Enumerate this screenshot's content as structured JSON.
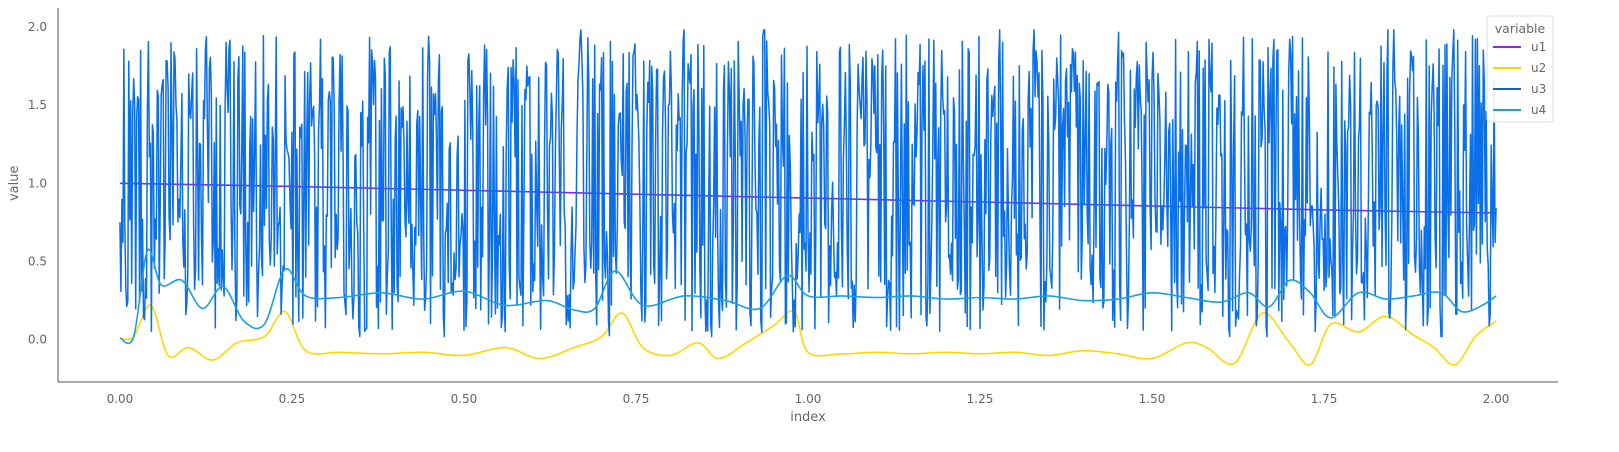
{
  "chart_data": {
    "type": "line",
    "xlabel": "index",
    "ylabel": "value",
    "xlim": [
      -0.09,
      2.09
    ],
    "ylim": [
      -0.27,
      2.12
    ],
    "xticks": [
      0.0,
      0.25,
      0.5,
      0.75,
      1.0,
      1.25,
      1.5,
      1.75,
      2.0
    ],
    "yticks": [
      0.0,
      0.5,
      1.0,
      1.5,
      2.0
    ],
    "xtick_labels": [
      "0.00",
      "0.25",
      "0.50",
      "0.75",
      "1.00",
      "1.25",
      "1.50",
      "1.75",
      "2.00"
    ],
    "ytick_labels": [
      "0.0",
      "0.5",
      "1.0",
      "1.5",
      "2.0"
    ],
    "legend": {
      "title": "variable",
      "position": "top-right"
    },
    "grid": false,
    "series": [
      {
        "name": "u1",
        "color": "#8a2be2",
        "x": [
          0.0,
          0.25,
          0.5,
          0.75,
          1.0,
          1.25,
          1.5,
          1.75,
          2.0
        ],
        "values": [
          1.0,
          0.98,
          0.955,
          0.93,
          0.905,
          0.88,
          0.855,
          0.83,
          0.81
        ]
      },
      {
        "name": "u2",
        "color": "#ffd700",
        "x": [
          0.0,
          0.02,
          0.045,
          0.07,
          0.1,
          0.135,
          0.17,
          0.21,
          0.24,
          0.27,
          0.32,
          0.38,
          0.44,
          0.5,
          0.56,
          0.61,
          0.66,
          0.7,
          0.73,
          0.76,
          0.8,
          0.84,
          0.87,
          0.91,
          0.95,
          0.98,
          1.0,
          1.05,
          1.1,
          1.15,
          1.2,
          1.25,
          1.3,
          1.35,
          1.4,
          1.45,
          1.5,
          1.55,
          1.58,
          1.62,
          1.66,
          1.7,
          1.73,
          1.76,
          1.8,
          1.84,
          1.88,
          1.91,
          1.94,
          1.97,
          2.0
        ],
        "values": [
          0.01,
          0.02,
          0.22,
          -0.1,
          -0.05,
          -0.13,
          -0.02,
          0.02,
          0.18,
          -0.07,
          -0.08,
          -0.09,
          -0.08,
          -0.1,
          -0.05,
          -0.12,
          -0.05,
          0.02,
          0.17,
          -0.05,
          -0.1,
          -0.02,
          -0.12,
          -0.02,
          0.09,
          0.18,
          -0.08,
          -0.09,
          -0.08,
          -0.09,
          -0.08,
          -0.09,
          -0.08,
          -0.1,
          -0.07,
          -0.09,
          -0.12,
          -0.02,
          -0.05,
          -0.15,
          0.17,
          -0.02,
          -0.16,
          0.1,
          0.05,
          0.15,
          0.03,
          -0.05,
          -0.16,
          0.02,
          0.12
        ]
      },
      {
        "name": "u3",
        "color": "#1565c0",
        "x": [
          0.0,
          0.25,
          0.5,
          0.75,
          1.0,
          1.25,
          1.5,
          1.75,
          2.0
        ],
        "values": [
          1.0,
          1.0,
          1.0,
          1.0,
          1.0,
          1.0,
          1.0,
          1.0,
          1.0
        ]
      },
      {
        "name": "u4",
        "color": "#1e90ff",
        "x": [
          0.0,
          0.02,
          0.04,
          0.06,
          0.09,
          0.12,
          0.15,
          0.18,
          0.21,
          0.24,
          0.27,
          0.32,
          0.38,
          0.44,
          0.5,
          0.56,
          0.62,
          0.66,
          0.69,
          0.72,
          0.76,
          0.82,
          0.88,
          0.93,
          0.97,
          1.0,
          1.05,
          1.1,
          1.15,
          1.2,
          1.25,
          1.3,
          1.35,
          1.4,
          1.45,
          1.5,
          1.55,
          1.6,
          1.64,
          1.67,
          1.7,
          1.73,
          1.76,
          1.8,
          1.84,
          1.88,
          1.92,
          1.95,
          1.98,
          2.0
        ],
        "values": [
          0.01,
          0.02,
          0.57,
          0.35,
          0.38,
          0.2,
          0.34,
          0.12,
          0.1,
          0.45,
          0.28,
          0.27,
          0.3,
          0.26,
          0.31,
          0.22,
          0.25,
          0.19,
          0.2,
          0.44,
          0.22,
          0.28,
          0.25,
          0.2,
          0.41,
          0.28,
          0.28,
          0.27,
          0.28,
          0.26,
          0.27,
          0.26,
          0.28,
          0.25,
          0.26,
          0.3,
          0.27,
          0.24,
          0.3,
          0.21,
          0.38,
          0.3,
          0.14,
          0.3,
          0.26,
          0.28,
          0.3,
          0.18,
          0.22,
          0.28
        ]
      }
    ]
  }
}
